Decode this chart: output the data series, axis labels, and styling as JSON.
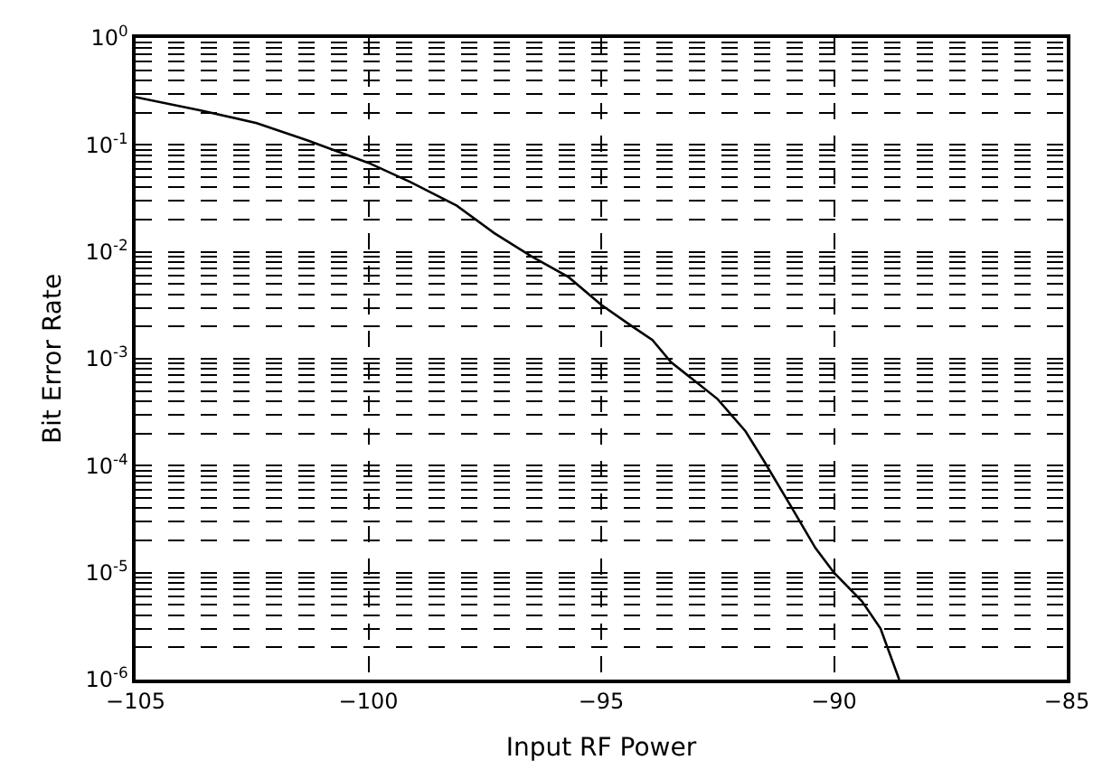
{
  "chart_data": {
    "type": "line",
    "xlabel": "Input RF Power",
    "ylabel": "Bit Error Rate",
    "x": [
      -105,
      -103.6,
      -102.4,
      -101.3,
      -100,
      -99.1,
      -98.1,
      -97.3,
      -96.5,
      -95.7,
      -95,
      -94.4,
      -93.9,
      -93.5,
      -92.5,
      -91.9,
      -91.5,
      -90.9,
      -90.4,
      -90,
      -89.4,
      -89.0,
      -88.6
    ],
    "series": [
      {
        "color": "#000000",
        "values": [
          0.28,
          0.21,
          0.16,
          0.11,
          0.068,
          0.045,
          0.027,
          0.015,
          0.0091,
          0.0058,
          0.0032,
          0.0021,
          0.0015,
          0.00093,
          0.00042,
          0.00021,
          0.00011,
          4e-05,
          1.7e-05,
          1e-05,
          5.4e-06,
          3e-06,
          1e-06
        ]
      }
    ],
    "xlim": [
      -105,
      -85
    ],
    "xticks": [
      -105,
      -100,
      -95,
      -90,
      -85
    ],
    "ylim": [
      1e-06,
      1
    ],
    "yticks": [
      {
        "value": 1,
        "label": "10$^{0}$"
      },
      {
        "value": 0.1,
        "label": "10$^{-1}$"
      },
      {
        "value": 0.01,
        "label": "10$^{-2}$"
      },
      {
        "value": 0.001,
        "label": "10$^{-3}$"
      },
      {
        "value": 0.0001,
        "label": "10$^{-4}$"
      },
      {
        "value": 1e-05,
        "label": "10$^{-5}$"
      },
      {
        "value": 1e-06,
        "label": "10$^{-6}$"
      }
    ],
    "log": "y",
    "grid": true,
    "line_style": "solid",
    "marker": "none"
  }
}
